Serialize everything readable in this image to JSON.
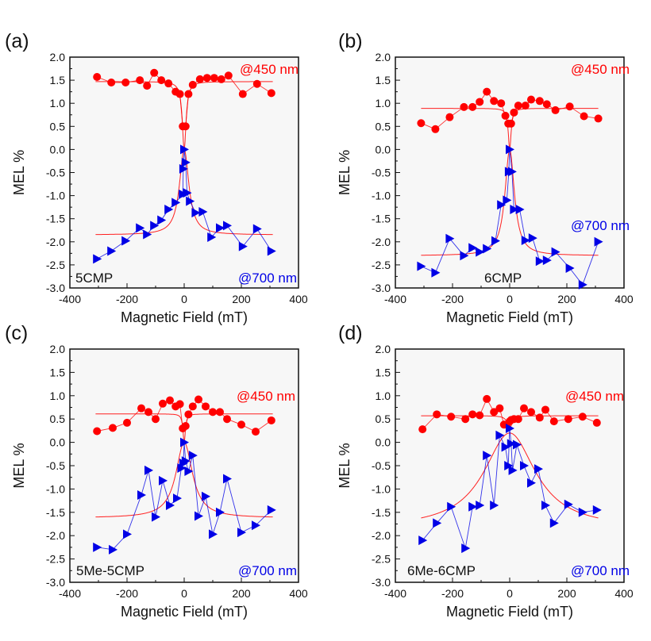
{
  "chart_data": [
    {
      "type": "scatter",
      "panel_label": "(a)",
      "sample": "5CMP",
      "xlabel": "Magnetic Field (mT)",
      "ylabel": "MEL %",
      "xlim": [
        -400,
        400
      ],
      "ylim": [
        -3.0,
        2.0
      ],
      "xticks": [
        "-400",
        "-200",
        "0",
        "200",
        "400"
      ],
      "yticks": [
        "2.0",
        "1.5",
        "1.0",
        "0.5",
        "0.0",
        "-0.5",
        "-1.0",
        "-1.5",
        "-2.0",
        "-2.5",
        "-3.0"
      ],
      "series": [
        {
          "name": "@450 nm",
          "color": "#ff0000",
          "marker": "circle",
          "x": [
            -305,
            -255,
            -205,
            -155,
            -130,
            -105,
            -80,
            -55,
            -30,
            -15,
            -5,
            5,
            15,
            30,
            55,
            80,
            105,
            130,
            155,
            205,
            255,
            305
          ],
          "y": [
            1.57,
            1.45,
            1.45,
            1.5,
            1.38,
            1.66,
            1.5,
            1.43,
            1.25,
            1.2,
            0.5,
            0.5,
            1.2,
            1.4,
            1.52,
            1.55,
            1.55,
            1.52,
            1.6,
            1.2,
            1.42,
            1.22
          ],
          "fit": {
            "baseline": 1.47,
            "center_value": 0.0,
            "width": 8
          }
        },
        {
          "name": "@700 nm",
          "color": "#0000e6",
          "marker": "triangle-right",
          "x": [
            -305,
            -255,
            -205,
            -155,
            -130,
            -105,
            -80,
            -55,
            -30,
            -5,
            -3,
            0,
            5,
            10,
            20,
            40,
            65,
            95,
            125,
            150,
            205,
            255,
            305
          ],
          "y": [
            -2.37,
            -2.2,
            -1.98,
            -1.7,
            -1.84,
            -1.65,
            -1.53,
            -1.3,
            -1.15,
            -0.97,
            -0.42,
            0.0,
            -0.28,
            -0.94,
            -1.12,
            -1.37,
            -1.35,
            -1.9,
            -1.7,
            -1.65,
            -2.1,
            -1.72,
            -2.2
          ],
          "fit": {
            "baseline": -1.85,
            "center_value": 0.0,
            "width": 20
          }
        }
      ]
    },
    {
      "type": "scatter",
      "panel_label": "(b)",
      "sample": "6CMP",
      "xlabel": "Magnetic Field (mT)",
      "ylabel": "MEL %",
      "xlim": [
        -400,
        400
      ],
      "ylim": [
        -3.0,
        2.0
      ],
      "xticks": [
        "-400",
        "-200",
        "0",
        "200",
        "400"
      ],
      "yticks": [
        "2.0",
        "1.5",
        "1.0",
        "0.5",
        "0.0",
        "-0.5",
        "-1.0",
        "-1.5",
        "-2.0",
        "-2.5",
        "-3.0"
      ],
      "series": [
        {
          "name": "@450 nm",
          "color": "#ff0000",
          "marker": "circle",
          "x": [
            -310,
            -260,
            -210,
            -160,
            -130,
            -105,
            -80,
            -55,
            -30,
            -15,
            -5,
            5,
            15,
            30,
            55,
            75,
            105,
            130,
            160,
            210,
            260,
            310
          ],
          "y": [
            0.57,
            0.44,
            0.7,
            0.92,
            0.92,
            1.03,
            1.25,
            1.05,
            1.0,
            0.73,
            0.56,
            0.56,
            0.8,
            0.95,
            0.95,
            1.08,
            1.05,
            0.98,
            0.85,
            0.93,
            0.72,
            0.67
          ],
          "fit": {
            "baseline": 0.89,
            "center_value": 0.0,
            "width": 6
          }
        },
        {
          "name": "@700 nm",
          "color": "#0000e6",
          "marker": "triangle-right",
          "x": [
            -310,
            -260,
            -210,
            -160,
            -130,
            -105,
            -80,
            -50,
            -30,
            -10,
            -3,
            0,
            8,
            15,
            35,
            55,
            80,
            105,
            130,
            160,
            210,
            255,
            310
          ],
          "y": [
            -2.53,
            -2.67,
            -1.93,
            -2.3,
            -2.13,
            -2.22,
            -2.15,
            -1.98,
            -1.2,
            -1.1,
            -0.48,
            0.0,
            -0.48,
            -1.3,
            -1.3,
            -1.97,
            -1.92,
            -2.42,
            -2.4,
            -2.22,
            -2.57,
            -2.93,
            -2.0
          ],
          "fit": {
            "baseline": -2.3,
            "center_value": 0.0,
            "width": 20
          }
        }
      ]
    },
    {
      "type": "scatter",
      "panel_label": "(c)",
      "sample": "5Me-5CMP",
      "xlabel": "Magnetic Field (mT)",
      "ylabel": "MEL %",
      "xlim": [
        -400,
        400
      ],
      "ylim": [
        -3.0,
        2.0
      ],
      "xticks": [
        "-400",
        "-200",
        "0",
        "200",
        "400"
      ],
      "yticks": [
        "2.0",
        "1.5",
        "1.0",
        "0.5",
        "0.0",
        "-0.5",
        "-1.0",
        "-1.5",
        "-2.0",
        "-2.5",
        "-3.0"
      ],
      "series": [
        {
          "name": "@450 nm",
          "color": "#ff0000",
          "marker": "circle",
          "x": [
            -305,
            -250,
            -200,
            -150,
            -125,
            -100,
            -75,
            -50,
            -30,
            -15,
            -5,
            5,
            15,
            30,
            50,
            75,
            100,
            125,
            150,
            200,
            250,
            305
          ],
          "y": [
            0.24,
            0.31,
            0.42,
            0.73,
            0.65,
            0.5,
            0.83,
            0.9,
            0.77,
            0.82,
            0.3,
            0.35,
            0.6,
            0.77,
            0.92,
            0.77,
            0.65,
            0.65,
            0.5,
            0.38,
            0.23,
            0.47
          ],
          "fit": {
            "baseline": 0.61,
            "center_value": 0.0,
            "width": 5
          }
        },
        {
          "name": "@700 nm",
          "color": "#0000e6",
          "marker": "triangle-right",
          "x": [
            -305,
            -250,
            -200,
            -150,
            -125,
            -100,
            -75,
            -50,
            -25,
            -10,
            -3,
            0,
            5,
            15,
            30,
            50,
            75,
            100,
            125,
            150,
            200,
            250,
            305
          ],
          "y": [
            -2.25,
            -2.3,
            -1.97,
            -1.13,
            -0.6,
            -1.6,
            -0.82,
            -1.35,
            -1.2,
            -0.55,
            -0.45,
            0.0,
            -0.4,
            -0.62,
            -0.28,
            -1.58,
            -1.16,
            -1.97,
            -1.5,
            -0.78,
            -1.93,
            -1.78,
            -1.45
          ],
          "fit": {
            "baseline": -1.62,
            "center_value": 0.0,
            "width": 35
          }
        }
      ]
    },
    {
      "type": "scatter",
      "panel_label": "(d)",
      "sample": "6Me-6CMP",
      "xlabel": "Magnetic Field (mT)",
      "ylabel": "MEL %",
      "xlim": [
        -400,
        400
      ],
      "ylim": [
        -3.0,
        2.0
      ],
      "xticks": [
        "-400",
        "-200",
        "0",
        "200",
        "400"
      ],
      "yticks": [
        "2.0",
        "1.5",
        "1.0",
        "0.5",
        "0.0",
        "-0.5",
        "-1.0",
        "-1.5",
        "-2.0",
        "-2.5",
        "-3.0"
      ],
      "series": [
        {
          "name": "@450 nm",
          "color": "#ff0000",
          "marker": "circle",
          "x": [
            -305,
            -255,
            -205,
            -155,
            -130,
            -105,
            -80,
            -55,
            -35,
            -20,
            -10,
            0,
            5,
            15,
            30,
            50,
            75,
            105,
            125,
            155,
            205,
            255,
            305
          ],
          "y": [
            0.28,
            0.6,
            0.55,
            0.5,
            0.6,
            0.58,
            0.93,
            0.65,
            0.73,
            0.38,
            0.38,
            0.45,
            0.48,
            0.5,
            0.5,
            0.73,
            0.65,
            0.53,
            0.7,
            0.45,
            0.5,
            0.55,
            0.42
          ],
          "fit": {
            "baseline": 0.57,
            "center_value": 0.3,
            "width": 10
          }
        },
        {
          "name": "@700 nm",
          "color": "#0000e6",
          "marker": "triangle-right",
          "x": [
            -305,
            -255,
            -205,
            -155,
            -130,
            -105,
            -80,
            -55,
            -35,
            -15,
            -5,
            0,
            5,
            10,
            25,
            50,
            75,
            100,
            125,
            155,
            205,
            255,
            305
          ],
          "y": [
            -2.1,
            -1.73,
            -1.38,
            -2.27,
            -1.38,
            -1.35,
            -0.28,
            -1.35,
            0.15,
            -0.1,
            -0.5,
            0.3,
            -0.03,
            -0.6,
            -0.05,
            -0.5,
            -0.87,
            -0.57,
            -1.35,
            -1.73,
            -1.33,
            -1.5,
            -1.45
          ],
          "fit": {
            "baseline": -1.85,
            "center_value": 0.2,
            "width": 110
          }
        }
      ]
    }
  ]
}
